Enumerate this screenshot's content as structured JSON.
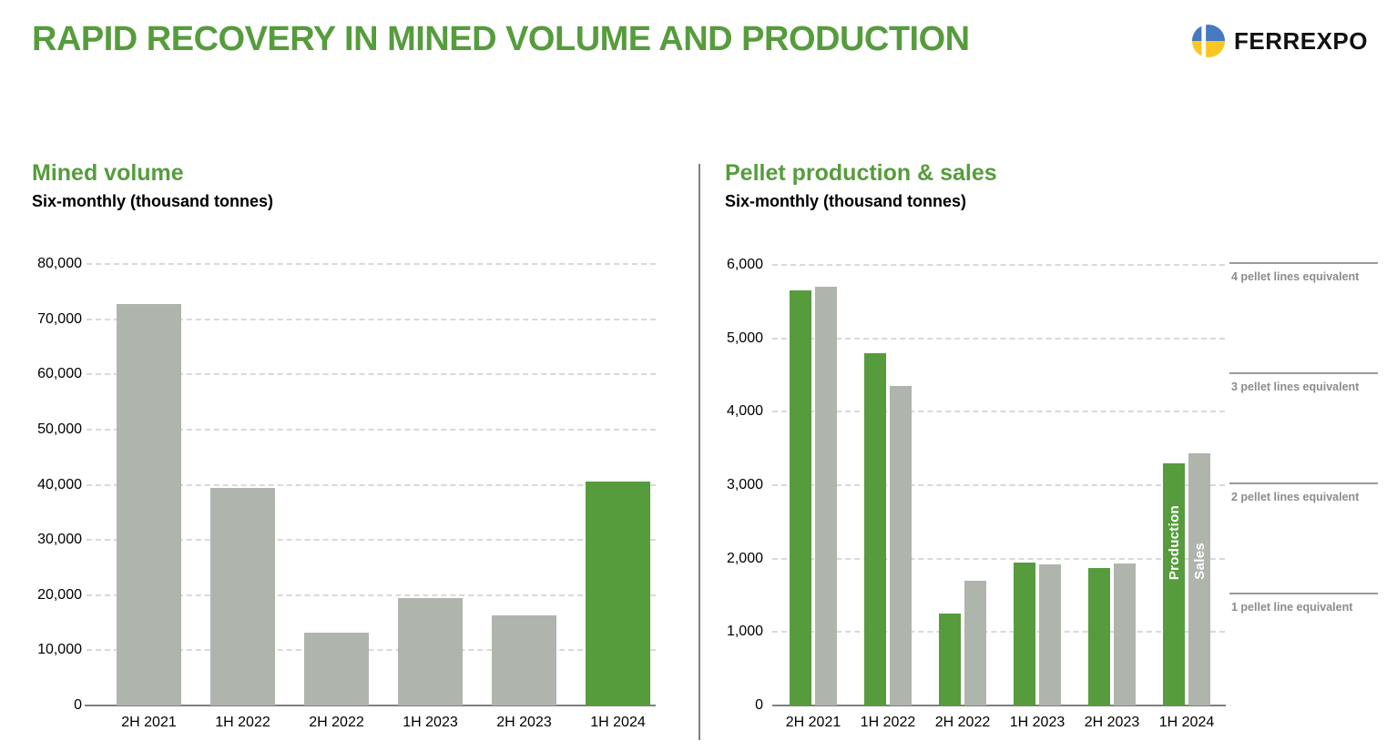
{
  "header": {
    "title": "RAPID RECOVERY IN MINED VOLUME AND PRODUCTION",
    "logo_text": "FERREXPO"
  },
  "colors": {
    "green": "#569C3D",
    "gray": "#AFB5AD",
    "axis": "#7F7F7F",
    "grid": "#D9D9D9",
    "ref_line": "#9A9A9A",
    "ref_label": "#8C8C8C",
    "logo_blue": "#4679BD",
    "logo_yellow": "#F9C623"
  },
  "chart_data": [
    {
      "type": "bar",
      "title": "Mined volume",
      "subtitle": "Six-monthly (thousand tonnes)",
      "categories": [
        "2H 2021",
        "1H 2022",
        "2H 2022",
        "1H 2023",
        "2H 2023",
        "1H 2024"
      ],
      "values": [
        72700,
        39400,
        13200,
        19400,
        16400,
        40600
      ],
      "bar_colors": [
        "gray",
        "gray",
        "gray",
        "gray",
        "gray",
        "green"
      ],
      "highlight_category": "1H 2024",
      "ylim": [
        0,
        80000
      ],
      "ytick_step": 10000,
      "grid": "horizontal-dashed",
      "legend": "none"
    },
    {
      "type": "bar",
      "title": "Pellet production & sales",
      "subtitle": "Six-monthly (thousand tonnes)",
      "categories": [
        "2H 2021",
        "1H 2022",
        "2H 2022",
        "1H 2023",
        "2H 2023",
        "1H 2024"
      ],
      "series": [
        {
          "name": "Production",
          "color": "green",
          "values": [
            5650,
            4800,
            1250,
            1950,
            1870,
            3300
          ]
        },
        {
          "name": "Sales",
          "color": "gray",
          "values": [
            5700,
            4350,
            1700,
            1920,
            1930,
            3430
          ]
        }
      ],
      "series_labels_in_bars_of_category": "1H 2024",
      "ylim": [
        0,
        6000
      ],
      "ytick_step": 1000,
      "grid": "horizontal-dashed",
      "reference_lines": [
        {
          "value": 6000,
          "label": "4 pellet lines equivalent"
        },
        {
          "value": 4500,
          "label": "3 pellet lines equivalent"
        },
        {
          "value": 3000,
          "label": "2 pellet lines equivalent"
        },
        {
          "value": 1500,
          "label": "1 pellet line equivalent"
        }
      ]
    }
  ]
}
